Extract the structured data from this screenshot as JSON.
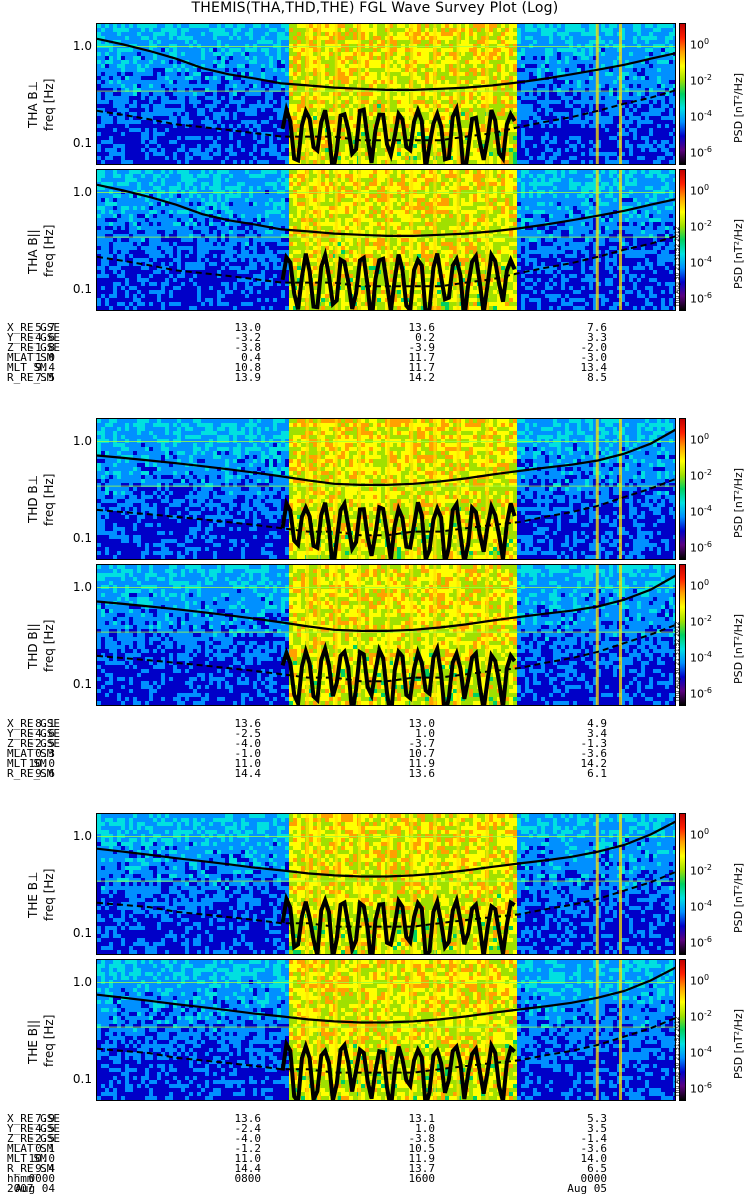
{
  "title": "THEMIS(THA,THD,THE) FGL Wave Survey Plot (Log)",
  "ytick_labels": [
    "1.0",
    "0.1"
  ],
  "ytick_values": [
    1.0,
    0.1
  ],
  "colorbar": {
    "label": "PSD [nT²/Hz]",
    "ticks": [
      "10",
      "10",
      "10",
      "10"
    ],
    "tick_exponents": [
      "0",
      "-2",
      "-4",
      "-6"
    ],
    "tick_values": [
      1,
      0.01,
      0.0001,
      1e-06
    ],
    "stamp": "Thu Aug 30 21:31:52 2012",
    "colors": [
      "#000000",
      "#5a0080",
      "#0000c8",
      "#0090ff",
      "#00e0e0",
      "#00d060",
      "#a0e000",
      "#ffff00",
      "#ffa000",
      "#ff2000",
      "#c00000"
    ]
  },
  "chart_data": [
    {
      "type": "heatmap",
      "label": "THA B⊥",
      "ylabel": "freq [Hz]",
      "yscale": "log",
      "ylim": [
        0.06,
        1.7
      ],
      "solid": [
        1.2,
        1.05,
        0.9,
        0.75,
        0.6,
        0.52,
        0.47,
        0.42,
        0.4,
        0.38,
        0.37,
        0.36,
        0.36,
        0.37,
        0.38,
        0.4,
        0.43,
        0.47,
        0.52,
        0.58,
        0.65,
        0.75,
        0.86
      ],
      "dashed": [
        0.22,
        0.2,
        0.18,
        0.16,
        0.15,
        0.14,
        0.13,
        0.12,
        0.12,
        0.12,
        0.11,
        0.11,
        0.11,
        0.11,
        0.12,
        0.13,
        0.15,
        0.17,
        0.19,
        0.22,
        0.26,
        0.3,
        0.36
      ]
    },
    {
      "type": "heatmap",
      "label": "THA B||",
      "ylabel": "freq [Hz]",
      "yscale": "log",
      "ylim": [
        0.06,
        1.7
      ],
      "solid": [
        1.2,
        1.05,
        0.9,
        0.75,
        0.6,
        0.52,
        0.47,
        0.42,
        0.4,
        0.38,
        0.37,
        0.36,
        0.36,
        0.37,
        0.38,
        0.4,
        0.43,
        0.47,
        0.52,
        0.58,
        0.65,
        0.75,
        0.86
      ],
      "dashed": [
        0.22,
        0.2,
        0.18,
        0.16,
        0.15,
        0.14,
        0.13,
        0.12,
        0.12,
        0.12,
        0.11,
        0.11,
        0.11,
        0.11,
        0.12,
        0.13,
        0.15,
        0.17,
        0.19,
        0.22,
        0.26,
        0.3,
        0.36
      ]
    },
    {
      "type": "heatmap",
      "label": "THD B⊥",
      "ylabel": "freq [Hz]",
      "yscale": "log",
      "ylim": [
        0.06,
        1.7
      ],
      "solid": [
        0.72,
        0.68,
        0.64,
        0.6,
        0.56,
        0.52,
        0.48,
        0.44,
        0.4,
        0.37,
        0.36,
        0.36,
        0.37,
        0.39,
        0.42,
        0.46,
        0.5,
        0.54,
        0.58,
        0.64,
        0.75,
        0.95,
        1.35
      ],
      "dashed": [
        0.2,
        0.19,
        0.18,
        0.17,
        0.16,
        0.15,
        0.14,
        0.13,
        0.12,
        0.12,
        0.11,
        0.11,
        0.12,
        0.12,
        0.13,
        0.14,
        0.15,
        0.17,
        0.19,
        0.22,
        0.27,
        0.33,
        0.42
      ]
    },
    {
      "type": "heatmap",
      "label": "THD B||",
      "ylabel": "freq [Hz]",
      "yscale": "log",
      "ylim": [
        0.06,
        1.7
      ],
      "solid": [
        0.72,
        0.68,
        0.64,
        0.6,
        0.56,
        0.52,
        0.48,
        0.44,
        0.4,
        0.37,
        0.36,
        0.36,
        0.37,
        0.39,
        0.42,
        0.46,
        0.5,
        0.54,
        0.58,
        0.64,
        0.75,
        0.95,
        1.35
      ],
      "dashed": [
        0.2,
        0.19,
        0.18,
        0.17,
        0.16,
        0.15,
        0.14,
        0.13,
        0.12,
        0.12,
        0.11,
        0.11,
        0.12,
        0.12,
        0.13,
        0.14,
        0.15,
        0.17,
        0.19,
        0.22,
        0.27,
        0.33,
        0.42
      ]
    },
    {
      "type": "heatmap",
      "label": "THE B⊥",
      "ylabel": "freq [Hz]",
      "yscale": "log",
      "ylim": [
        0.06,
        1.7
      ],
      "solid": [
        0.75,
        0.7,
        0.65,
        0.6,
        0.56,
        0.52,
        0.48,
        0.45,
        0.42,
        0.4,
        0.39,
        0.39,
        0.4,
        0.42,
        0.45,
        0.49,
        0.53,
        0.57,
        0.62,
        0.7,
        0.82,
        1.05,
        1.45
      ],
      "dashed": [
        0.21,
        0.2,
        0.19,
        0.17,
        0.16,
        0.15,
        0.14,
        0.13,
        0.13,
        0.12,
        0.12,
        0.12,
        0.12,
        0.13,
        0.14,
        0.15,
        0.16,
        0.18,
        0.2,
        0.23,
        0.28,
        0.34,
        0.44
      ]
    },
    {
      "type": "heatmap",
      "label": "THE B||",
      "ylabel": "freq [Hz]",
      "yscale": "log",
      "ylim": [
        0.06,
        1.7
      ],
      "solid": [
        0.75,
        0.7,
        0.65,
        0.6,
        0.56,
        0.52,
        0.48,
        0.45,
        0.42,
        0.4,
        0.39,
        0.39,
        0.4,
        0.42,
        0.45,
        0.49,
        0.53,
        0.57,
        0.62,
        0.7,
        0.82,
        1.05,
        1.45
      ],
      "dashed": [
        0.21,
        0.2,
        0.19,
        0.17,
        0.16,
        0.15,
        0.14,
        0.13,
        0.13,
        0.12,
        0.12,
        0.12,
        0.12,
        0.13,
        0.14,
        0.15,
        0.16,
        0.18,
        0.2,
        0.23,
        0.28,
        0.34,
        0.44
      ]
    }
  ],
  "ephemeris": [
    {
      "labels": [
        "X_RE_GSE",
        "Y_RE_GSE",
        "Z_RE_GSE",
        "MLAT_SM",
        "MLT_SM",
        "R_RE_SM"
      ],
      "columns": [
        [
          "5.7",
          "-4.6",
          "-1.8",
          "1.0",
          "9.4",
          "7.5"
        ],
        [
          "13.0",
          "-3.2",
          "-3.8",
          "0.4",
          "10.8",
          "13.9"
        ],
        [
          "13.6",
          "0.2",
          "-3.9",
          "11.7",
          "11.7",
          "14.2"
        ],
        [
          "7.6",
          "3.3",
          "-2.0",
          "-3.0",
          "13.4",
          "8.5"
        ]
      ]
    },
    {
      "labels": [
        "X_RE_GSE",
        "Y_RE_GSE",
        "Z_RE_GSE",
        "MLAT_SM",
        "MLT_SM",
        "R_RE_SM"
      ],
      "columns": [
        [
          "8.1",
          "-4.6",
          "-2.5",
          "0.3",
          "10.0",
          "9.6"
        ],
        [
          "13.6",
          "-2.5",
          "-4.0",
          "-1.0",
          "11.0",
          "14.4"
        ],
        [
          "13.0",
          "1.0",
          "-3.7",
          "10.7",
          "11.9",
          "13.6"
        ],
        [
          "4.9",
          "3.4",
          "-1.3",
          "-3.6",
          "14.2",
          "6.1"
        ]
      ]
    },
    {
      "labels": [
        "X_RE_GSE",
        "Y_RE_GSE",
        "Z_RE_GSE",
        "MLAT_SM",
        "MLT_SM",
        "R_RE_SM",
        "hhmm",
        "2007"
      ],
      "columns": [
        [
          "7.9",
          "-4.5",
          "-2.5",
          "0.1",
          "10.0",
          "9.4",
          "0000",
          "Aug 04"
        ],
        [
          "13.6",
          "-2.4",
          "-4.0",
          "-1.2",
          "11.0",
          "14.4",
          "0800",
          ""
        ],
        [
          "13.1",
          "1.0",
          "-3.8",
          "10.5",
          "11.9",
          "13.7",
          "1600",
          ""
        ],
        [
          "5.3",
          "3.5",
          "-1.4",
          "-3.6",
          "14.0",
          "6.5",
          "0000",
          "Aug 05"
        ]
      ]
    }
  ]
}
